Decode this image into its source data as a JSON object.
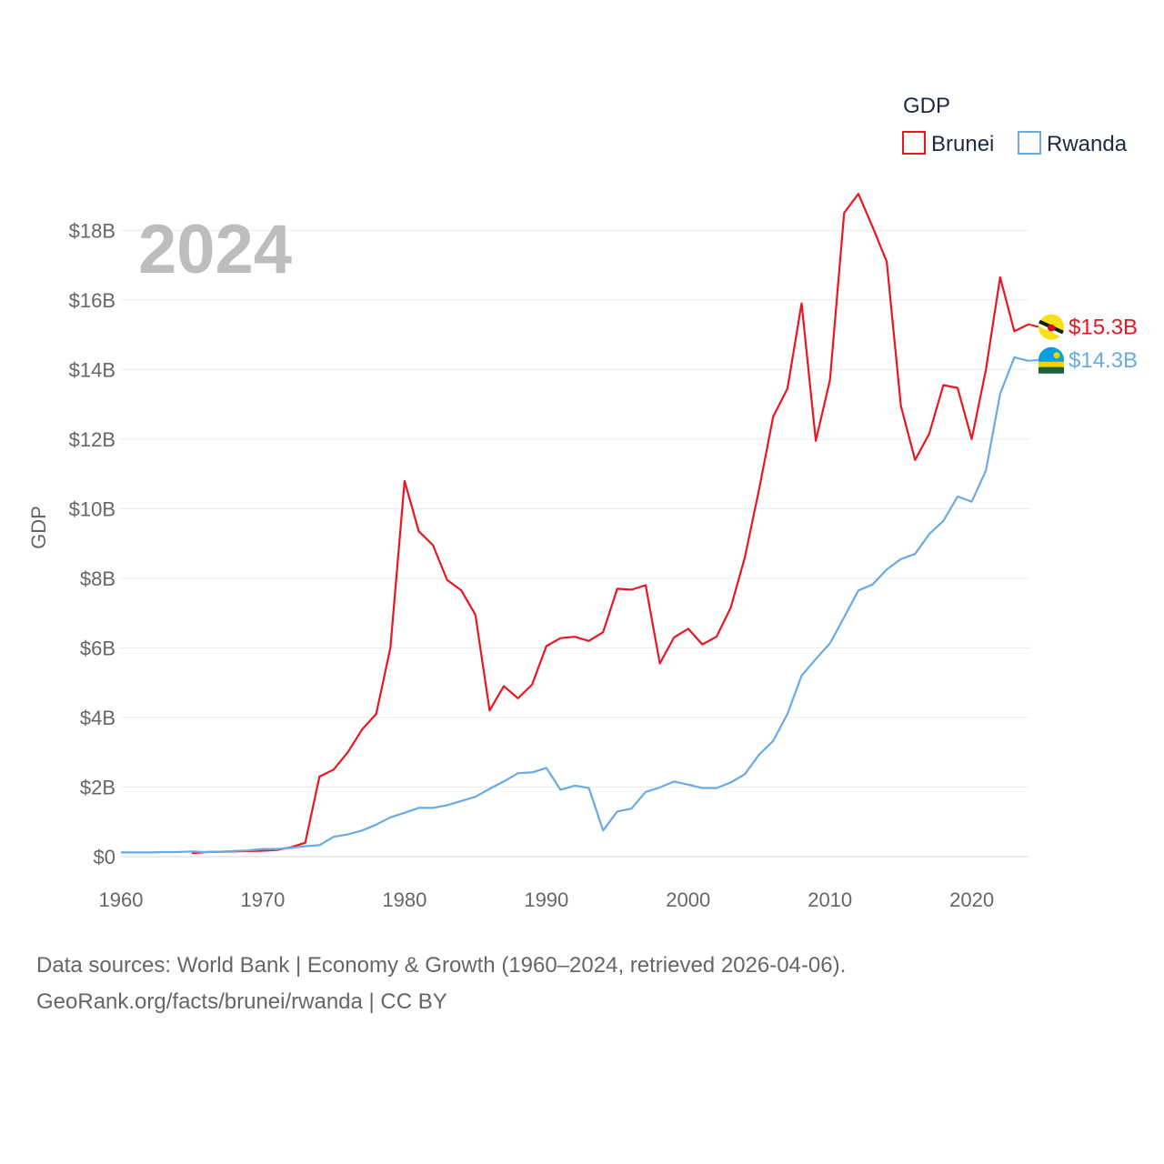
{
  "chart_data": {
    "type": "line",
    "title": "GDP",
    "current_year_label": "2024",
    "ylabel": "GDP",
    "xlim": [
      1960,
      2024
    ],
    "ylim": [
      0,
      19000000000
    ],
    "x_ticks": [
      {
        "value": 1960,
        "label": "1960"
      },
      {
        "value": 1970,
        "label": "1970"
      },
      {
        "value": 1980,
        "label": "1980"
      },
      {
        "value": 1990,
        "label": "1990"
      },
      {
        "value": 2000,
        "label": "2000"
      },
      {
        "value": 2010,
        "label": "2010"
      },
      {
        "value": 2020,
        "label": "2020"
      }
    ],
    "y_ticks": [
      {
        "value": 0,
        "label": "$0"
      },
      {
        "value": 2000000000,
        "label": "$2B"
      },
      {
        "value": 4000000000,
        "label": "$4B"
      },
      {
        "value": 6000000000,
        "label": "$6B"
      },
      {
        "value": 8000000000,
        "label": "$8B"
      },
      {
        "value": 10000000000,
        "label": "$10B"
      },
      {
        "value": 12000000000,
        "label": "$12B"
      },
      {
        "value": 14000000000,
        "label": "$14B"
      },
      {
        "value": 16000000000,
        "label": "$16B"
      },
      {
        "value": 18000000000,
        "label": "$18B"
      }
    ],
    "grid": true,
    "legend_position": "top-right",
    "series": [
      {
        "name": "Brunei",
        "color": "#e8161e",
        "end_label": "$15.3B",
        "x": [
          1965,
          1966,
          1967,
          1968,
          1969,
          1970,
          1971,
          1972,
          1973,
          1974,
          1975,
          1976,
          1977,
          1978,
          1979,
          1980,
          1981,
          1982,
          1983,
          1984,
          1985,
          1986,
          1987,
          1988,
          1989,
          1990,
          1991,
          1992,
          1993,
          1994,
          1995,
          1996,
          1997,
          1998,
          1999,
          2000,
          2001,
          2002,
          2003,
          2004,
          2005,
          2006,
          2007,
          2008,
          2009,
          2010,
          2011,
          2012,
          2013,
          2014,
          2015,
          2016,
          2017,
          2018,
          2019,
          2020,
          2021,
          2022,
          2023,
          2024
        ],
        "values": [
          100000000.0,
          130000000.0,
          140000000.0,
          150000000.0,
          160000000.0,
          170000000.0,
          190000000.0,
          270000000.0,
          400000000.0,
          2300000000.0,
          2500000000.0,
          3000000000.0,
          3650000000.0,
          4100000000.0,
          6000000000.0,
          10800000000.0,
          9350000000.0,
          8950000000.0,
          7950000000.0,
          7650000000.0,
          6950000000.0,
          4200000000.0,
          4900000000.0,
          4550000000.0,
          4950000000.0,
          6050000000.0,
          6280000000.0,
          6320000000.0,
          6200000000.0,
          6450000000.0,
          7700000000.0,
          7670000000.0,
          7800000000.0,
          5550000000.0,
          6300000000.0,
          6550000000.0,
          6100000000.0,
          6320000000.0,
          7150000000.0,
          8600000000.0,
          10550000000.0,
          12650000000.0,
          13450000000.0,
          15900000000.0,
          11950000000.0,
          13700000000.0,
          18500000000.0,
          19050000000.0,
          18100000000.0,
          17100000000.0,
          12950000000.0,
          11400000000.0,
          12150000000.0,
          13550000000.0,
          13470000000.0,
          12000000000.0,
          14000000000.0,
          16650000000.0,
          15100000000.0,
          15300000000.0
        ]
      },
      {
        "name": "Rwanda",
        "color": "#6aaae4",
        "end_label": "$14.3B",
        "x": [
          1960,
          1961,
          1962,
          1963,
          1964,
          1965,
          1966,
          1967,
          1968,
          1969,
          1970,
          1971,
          1972,
          1973,
          1974,
          1975,
          1976,
          1977,
          1978,
          1979,
          1980,
          1981,
          1982,
          1983,
          1984,
          1985,
          1986,
          1987,
          1988,
          1989,
          1990,
          1991,
          1992,
          1993,
          1994,
          1995,
          1996,
          1997,
          1998,
          1999,
          2000,
          2001,
          2002,
          2003,
          2004,
          2005,
          2006,
          2007,
          2008,
          2009,
          2010,
          2011,
          2012,
          2013,
          2014,
          2015,
          2016,
          2017,
          2018,
          2019,
          2020,
          2021,
          2022,
          2023,
          2024
        ],
        "values": [
          120000000.0,
          120000000.0,
          120000000.0,
          130000000.0,
          130000000.0,
          150000000.0,
          130000000.0,
          140000000.0,
          160000000.0,
          180000000.0,
          220000000.0,
          220000000.0,
          250000000.0,
          300000000.0,
          330000000.0,
          570000000.0,
          640000000.0,
          750000000.0,
          920000000.0,
          1130000000.0,
          1260000000.0,
          1400000000.0,
          1400000000.0,
          1480000000.0,
          1600000000.0,
          1720000000.0,
          1950000000.0,
          2160000000.0,
          2400000000.0,
          2420000000.0,
          2550000000.0,
          1920000000.0,
          2040000000.0,
          1970000000.0,
          750000000.0,
          1300000000.0,
          1380000000.0,
          1860000000.0,
          1990000000.0,
          2160000000.0,
          2070000000.0,
          1970000000.0,
          1970000000.0,
          2130000000.0,
          2370000000.0,
          2930000000.0,
          3330000000.0,
          4100000000.0,
          5200000000.0,
          5680000000.0,
          6130000000.0,
          6880000000.0,
          7650000000.0,
          7820000000.0,
          8250000000.0,
          8550000000.0,
          8700000000.0,
          9270000000.0,
          9650000000.0,
          10350000000.0,
          10200000000.0,
          11100000000.0,
          13300000000.0,
          14350000000.0,
          14250000000.0
        ]
      }
    ]
  },
  "flags": [
    {
      "country": "Brunei",
      "colors": [
        "#f7e017",
        "#1a1a1a",
        "#ffffff",
        "#cf1126"
      ]
    },
    {
      "country": "Rwanda",
      "colors": [
        "#20603d",
        "#fad201",
        "#00a1de"
      ]
    }
  ],
  "footer": {
    "line1": "Data sources: World Bank | Economy & Growth (1960–2024, retrieved 2026-04-06).",
    "line2": "GeoRank.org/facts/brunei/rwanda | CC BY"
  }
}
